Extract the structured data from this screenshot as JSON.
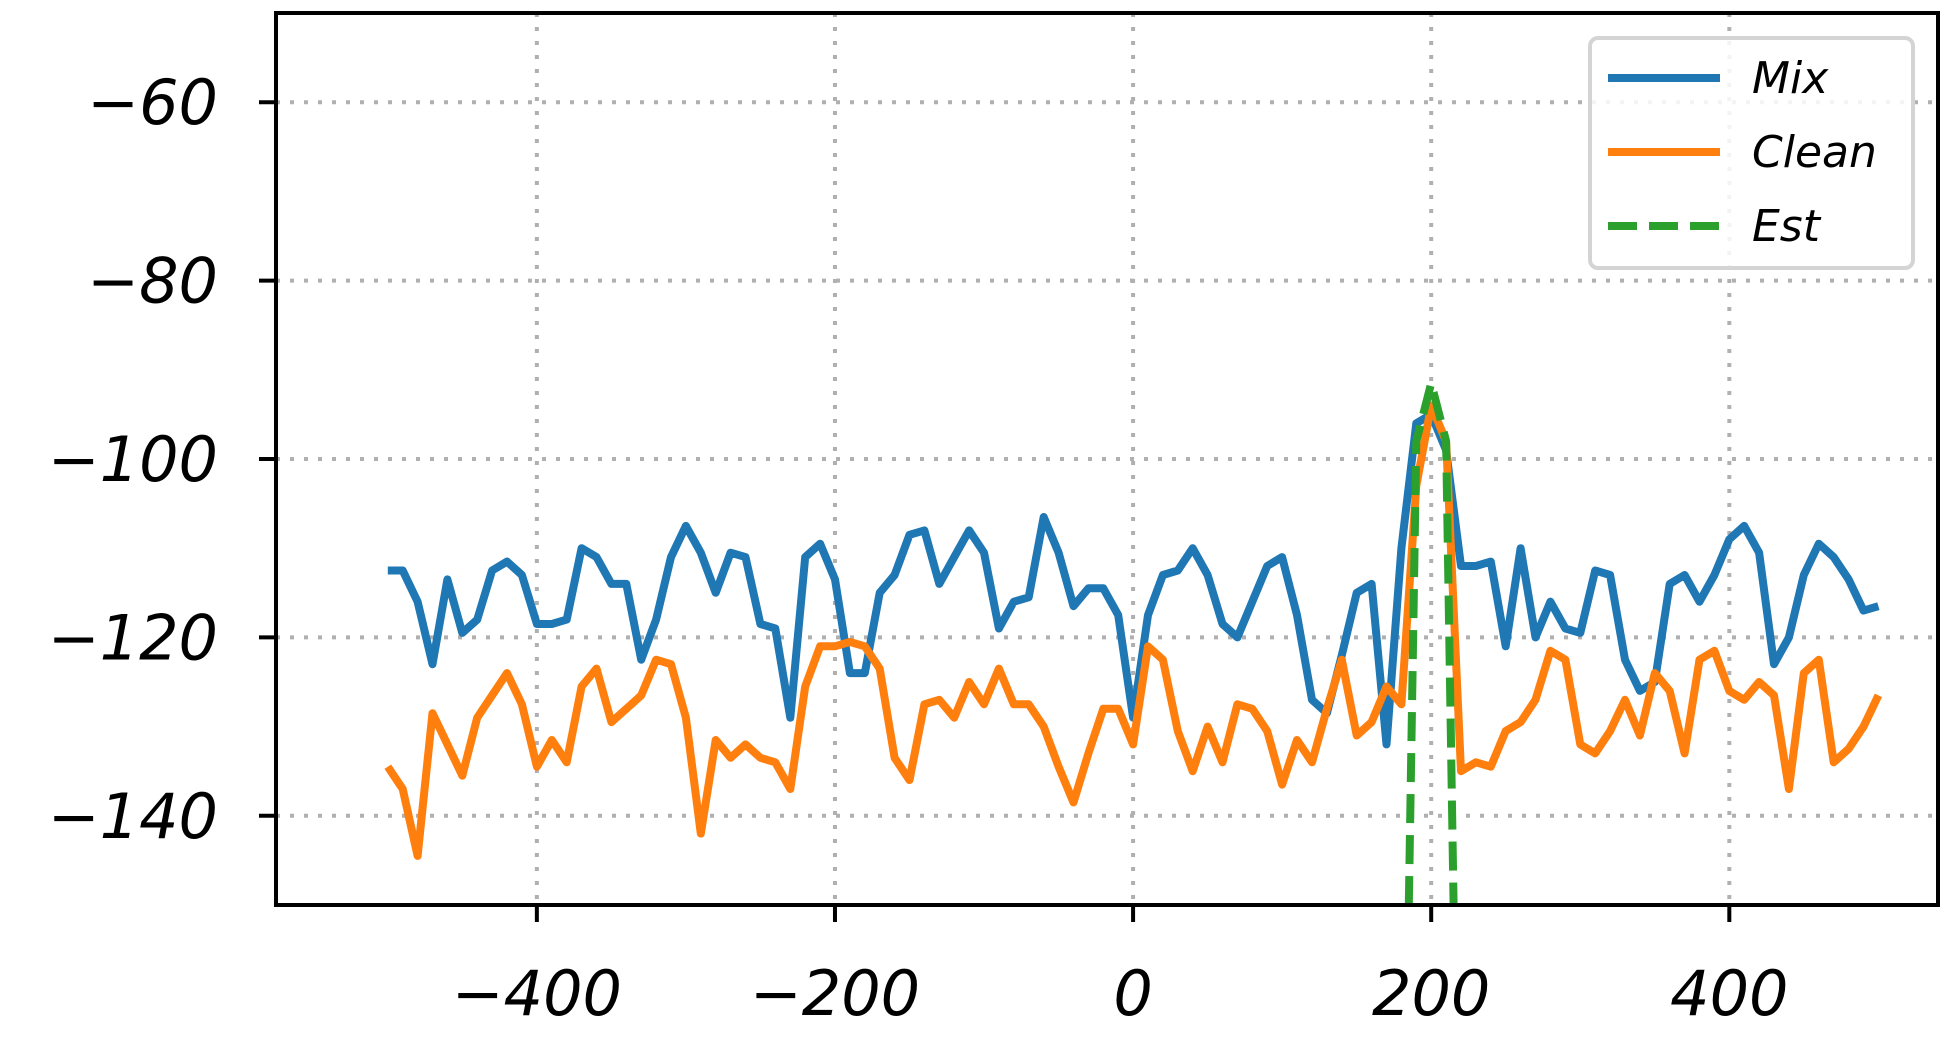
{
  "chart_data": {
    "type": "line",
    "title": "",
    "xlabel": "",
    "ylabel": "",
    "xlim": [
      -575,
      540
    ],
    "ylim": [
      -150,
      -50
    ],
    "xticks": [
      -400,
      -200,
      0,
      200,
      400
    ],
    "yticks": [
      -60,
      -80,
      -100,
      -120,
      -140
    ],
    "xtick_labels": [
      "−400",
      "−200",
      "0",
      "200",
      "400"
    ],
    "ytick_labels": [
      "−60",
      "−80",
      "−100",
      "−120",
      "−140"
    ],
    "grid": true,
    "legend_position": "top-right",
    "series": [
      {
        "name": "Mix",
        "color": "#1f77b4",
        "style": "solid",
        "x": [
          -500,
          -490,
          -480,
          -470,
          -460,
          -450,
          -440,
          -430,
          -420,
          -410,
          -400,
          -390,
          -380,
          -370,
          -360,
          -350,
          -340,
          -330,
          -320,
          -310,
          -300,
          -290,
          -280,
          -270,
          -260,
          -250,
          -240,
          -230,
          -220,
          -210,
          -200,
          -190,
          -180,
          -170,
          -160,
          -150,
          -140,
          -130,
          -120,
          -110,
          -100,
          -90,
          -80,
          -70,
          -60,
          -50,
          -40,
          -30,
          -20,
          -10,
          0,
          10,
          20,
          30,
          40,
          50,
          60,
          70,
          80,
          90,
          100,
          110,
          120,
          130,
          140,
          150,
          160,
          170,
          180,
          190,
          200,
          210,
          220,
          230,
          240,
          250,
          260,
          270,
          280,
          290,
          300,
          310,
          320,
          330,
          340,
          350,
          360,
          370,
          380,
          390,
          400,
          410,
          420,
          430,
          440,
          450,
          460,
          470,
          480,
          490,
          500
        ],
        "y": [
          -112.5,
          -112.5,
          -116,
          -123,
          -113.5,
          -119.5,
          -118,
          -112.5,
          -111.5,
          -113,
          -118.5,
          -118.5,
          -118,
          -110,
          -111,
          -114,
          -114,
          -122.5,
          -118,
          -111,
          -107.5,
          -110.5,
          -115,
          -110.5,
          -111,
          -118.5,
          -119,
          -129,
          -111,
          -109.5,
          -113.5,
          -124,
          -124,
          -115,
          -113,
          -108.5,
          -108,
          -114,
          -111,
          -108,
          -110.5,
          -119,
          -116,
          -115.5,
          -106.5,
          -110.5,
          -116.5,
          -114.5,
          -114.5,
          -117.5,
          -129,
          -117.5,
          -113,
          -112.5,
          -110,
          -113,
          -118.5,
          -120,
          -116,
          -112,
          -111,
          -117.5,
          -127,
          -128.5,
          -122,
          -115,
          -114,
          -132,
          -110,
          -96,
          -95,
          -99,
          -112,
          -112,
          -111.5,
          -121,
          -110,
          -120,
          -116,
          -119,
          -119.5,
          -112.5,
          -113,
          -122.5,
          -126,
          -125,
          -114,
          -113,
          -116,
          -113,
          -109,
          -107.5,
          -110.5,
          -123,
          -120,
          -113,
          -109.5,
          -111,
          -113.5,
          -117,
          -116.5
        ]
      },
      {
        "name": "Clean",
        "color": "#ff7f0e",
        "style": "solid",
        "x": [
          -500,
          -490,
          -480,
          -470,
          -460,
          -450,
          -440,
          -430,
          -420,
          -410,
          -400,
          -390,
          -380,
          -370,
          -360,
          -350,
          -340,
          -330,
          -320,
          -310,
          -300,
          -290,
          -280,
          -270,
          -260,
          -250,
          -240,
          -230,
          -220,
          -210,
          -200,
          -190,
          -180,
          -170,
          -160,
          -150,
          -140,
          -130,
          -120,
          -110,
          -100,
          -90,
          -80,
          -70,
          -60,
          -50,
          -40,
          -30,
          -20,
          -10,
          0,
          10,
          20,
          30,
          40,
          50,
          60,
          70,
          80,
          90,
          100,
          110,
          120,
          130,
          140,
          150,
          160,
          170,
          180,
          190,
          200,
          210,
          220,
          230,
          240,
          250,
          260,
          270,
          280,
          290,
          300,
          310,
          320,
          330,
          340,
          350,
          360,
          370,
          380,
          390,
          400,
          410,
          420,
          430,
          440,
          450,
          460,
          470,
          480,
          490,
          500
        ],
        "y": [
          -134.5,
          -137,
          -144.5,
          -128.5,
          -132,
          -135.5,
          -129,
          -126.5,
          -124,
          -127.5,
          -134.5,
          -131.5,
          -134,
          -125.5,
          -123.5,
          -129.5,
          -128,
          -126.5,
          -122.5,
          -123,
          -129,
          -142,
          -131.5,
          -133.5,
          -132,
          -133.5,
          -134,
          -137,
          -125.5,
          -121,
          -121,
          -120.5,
          -121,
          -123.5,
          -133.5,
          -136,
          -127.5,
          -127,
          -129,
          -125,
          -127.5,
          -123.5,
          -127.5,
          -127.5,
          -130,
          -134.5,
          -138.5,
          -133,
          -128,
          -128,
          -132,
          -121,
          -122.5,
          -130.5,
          -135,
          -130,
          -134,
          -127.5,
          -128,
          -130.5,
          -136.5,
          -131.5,
          -134,
          -128,
          -122.5,
          -131,
          -129.5,
          -125.5,
          -127.5,
          -103,
          -94,
          -98,
          -135,
          -134,
          -134.5,
          -130.5,
          -129.5,
          -127,
          -121.5,
          -122.5,
          -132,
          -133,
          -130.5,
          -127,
          -131,
          -124,
          -126,
          -133,
          -122.5,
          -121.5,
          -126,
          -127,
          -125,
          -126.5,
          -137,
          -124,
          -122.5,
          -134,
          -132.5,
          -130,
          -126.5
        ]
      },
      {
        "name": "Est",
        "color": "#2ca02c",
        "style": "dashed",
        "x": [
          185,
          190,
          200,
          210,
          215
        ],
        "y": [
          -150,
          -98,
          -91.5,
          -98,
          -150
        ]
      }
    ]
  }
}
